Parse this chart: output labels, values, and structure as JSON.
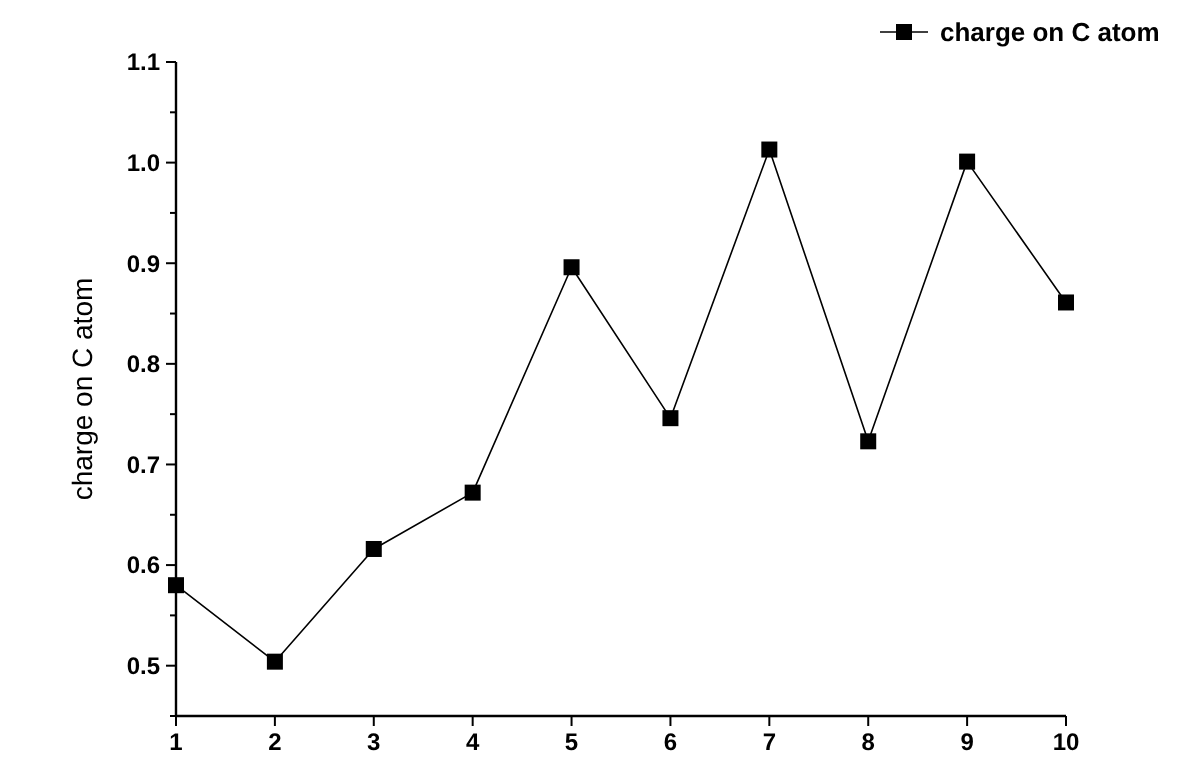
{
  "chart_data": {
    "type": "line",
    "ylabel": "charge on C atom",
    "x": [
      1,
      2,
      3,
      4,
      5,
      6,
      7,
      8,
      9,
      10
    ],
    "series": [
      {
        "name": "charge on C atom",
        "color": "#000000",
        "values": [
          0.58,
          0.504,
          0.616,
          0.672,
          0.896,
          0.746,
          1.013,
          0.723,
          1.001,
          0.861
        ]
      }
    ],
    "xlim": [
      1,
      10
    ],
    "xticks": [
      1,
      2,
      3,
      4,
      5,
      6,
      7,
      8,
      9,
      10
    ],
    "ylim": [
      0.45,
      1.1
    ],
    "yticks": [
      {
        "value": 0.45,
        "label": null
      },
      0.5,
      {
        "value": 0.55,
        "label": null
      },
      0.6,
      {
        "value": 0.65,
        "label": null
      },
      0.7,
      {
        "value": 0.75,
        "label": null
      },
      0.8,
      {
        "value": 0.85,
        "label": null
      },
      0.9,
      {
        "value": 0.95,
        "label": null
      },
      {
        "value": 1.0,
        "label": "1.0"
      },
      {
        "value": 1.05,
        "label": null
      },
      1.1
    ],
    "marker": "square",
    "line_style": "solid",
    "legend": "top right",
    "grid": false
  }
}
